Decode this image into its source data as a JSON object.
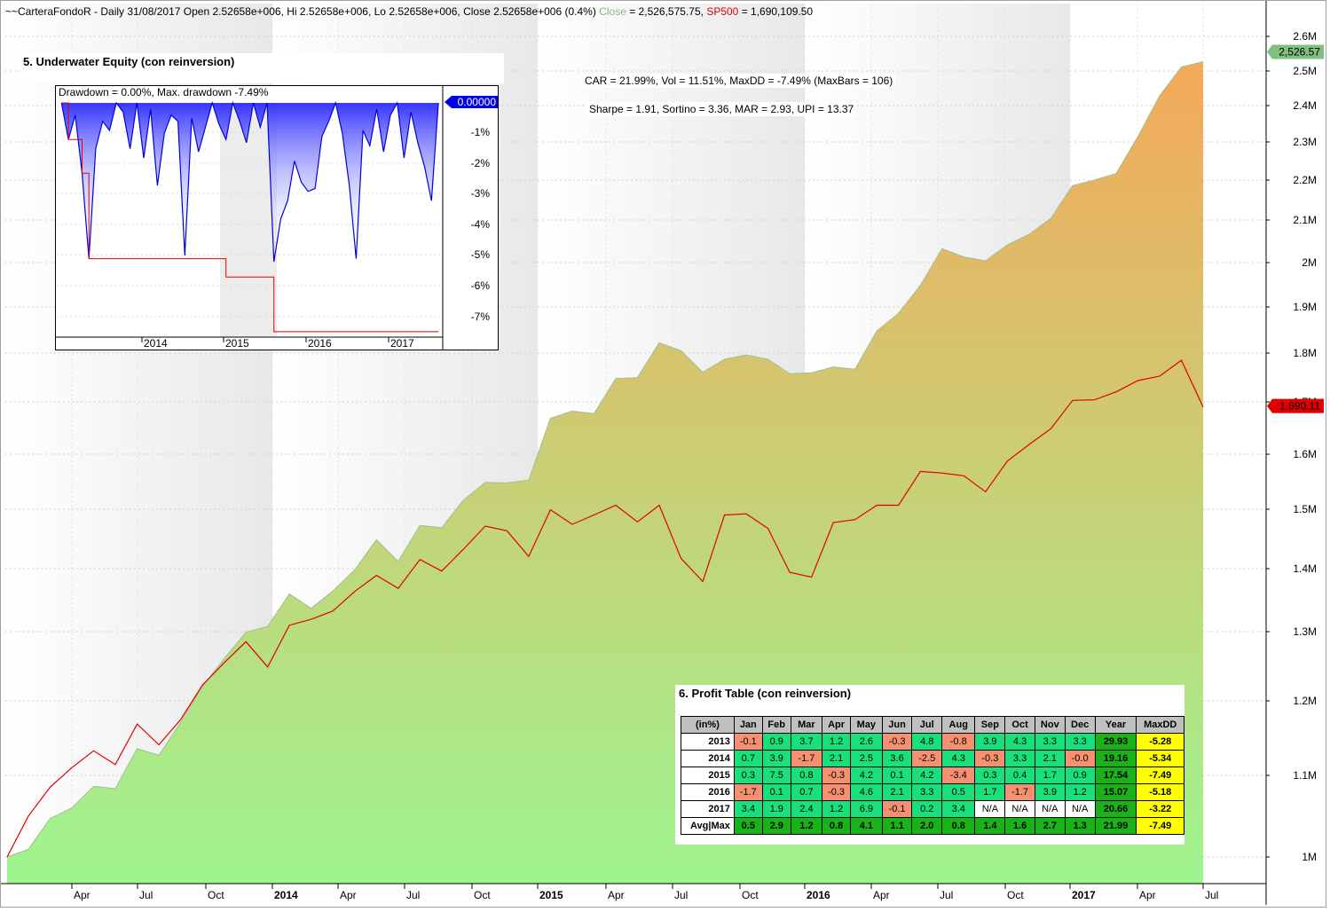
{
  "header": {
    "prefix": "~~CarteraFondoR - Daily 31/08/2017 Open 2.52658e+006, Hi 2.52658e+006, Lo 2.52658e+006, Close 2.52658e+006 (0.4%)",
    "close_label": "Close",
    "close_value": "= 2,526,575.75,",
    "sp_label": "SP500",
    "sp_value": "= 1,690,109.50"
  },
  "stats": {
    "line1": "CAR = 21.99%, Vol = 11.51%, MaxDD = -7.49% (MaxBars = 106)",
    "line2": "Sharpe = 1.91, Sortino = 3.36, MAR = 2.93, UPI = 13.37"
  },
  "colors": {
    "equity_top": "#f5a85a",
    "equity_bottom": "#9ef590",
    "sp500_line": "#e00000",
    "drawdown_line": "#0000e0",
    "maxdd_line": "#e00000",
    "price_tag_green": "#7fbf7f",
    "price_tag_red": "#e00000",
    "cell_green": "#19e07a",
    "cell_red": "#f59070",
    "cell_dark_green": "#19b319",
    "cell_yellow": "#ffff00"
  },
  "chart_data": [
    {
      "type": "area",
      "ylabel": "",
      "scale": "log",
      "ylim": [
        980000,
        2650000
      ],
      "x_ticks": [
        "Apr",
        "Jul",
        "Oct",
        "2014",
        "Apr",
        "Jul",
        "Oct",
        "2015",
        "Apr",
        "Jul",
        "Oct",
        "2016",
        "Apr",
        "Jul",
        "Oct",
        "2017",
        "Apr",
        "Jul"
      ],
      "y_ticks": [
        "2.6M",
        "2.5M",
        "2.4M",
        "2.3M",
        "2.2M",
        "2.1M",
        "2M",
        "1.9M",
        "1.8M",
        "1.7M",
        "1.6M",
        "1.5M",
        "1.4M",
        "1.3M",
        "1.2M",
        "1.1M",
        "1M"
      ],
      "last_close_tag": "2,526.57",
      "last_sp500_tag": "1,690.11",
      "x": [
        "2013-01",
        "2013-02",
        "2013-03",
        "2013-04",
        "2013-05",
        "2013-06",
        "2013-07",
        "2013-08",
        "2013-09",
        "2013-10",
        "2013-11",
        "2013-12",
        "2014-01",
        "2014-02",
        "2014-03",
        "2014-04",
        "2014-05",
        "2014-06",
        "2014-07",
        "2014-08",
        "2014-09",
        "2014-10",
        "2014-11",
        "2014-12",
        "2015-01",
        "2015-02",
        "2015-03",
        "2015-04",
        "2015-05",
        "2015-06",
        "2015-07",
        "2015-08",
        "2015-09",
        "2015-10",
        "2015-11",
        "2015-12",
        "2016-01",
        "2016-02",
        "2016-03",
        "2016-04",
        "2016-05",
        "2016-06",
        "2016-07",
        "2016-08",
        "2016-09",
        "2016-10",
        "2016-11",
        "2016-12",
        "2017-01",
        "2017-02",
        "2017-03",
        "2017-04",
        "2017-05",
        "2017-06",
        "2017-07",
        "2017-08"
      ],
      "series": [
        {
          "name": "Close",
          "values": [
            1000000,
            1009000,
            1046000,
            1059000,
            1086000,
            1083000,
            1135000,
            1126000,
            1170000,
            1220000,
            1260000,
            1299000,
            1308000,
            1359000,
            1336000,
            1364000,
            1398000,
            1448000,
            1412000,
            1472000,
            1468000,
            1516000,
            1548000,
            1547000,
            1552000,
            1668000,
            1682000,
            1677000,
            1747000,
            1749000,
            1822000,
            1805000,
            1760000,
            1787000,
            1796000,
            1787000,
            1757000,
            1759000,
            1771000,
            1766000,
            1847000,
            1886000,
            1948000,
            2032000,
            2013000,
            2004000,
            2041000,
            2066000,
            2104000,
            2186000,
            2200000,
            2217000,
            2314000,
            2428000,
            2511000,
            2526576
          ]
        },
        {
          "name": "SP500",
          "values": [
            1000000,
            1049000,
            1085000,
            1110000,
            1132000,
            1114000,
            1168000,
            1140000,
            1174000,
            1222000,
            1254000,
            1285000,
            1248000,
            1310000,
            1319000,
            1332000,
            1363000,
            1389000,
            1368000,
            1415000,
            1396000,
            1432000,
            1471000,
            1463000,
            1420000,
            1499000,
            1474000,
            1490000,
            1507000,
            1478000,
            1507000,
            1417000,
            1379000,
            1490000,
            1492000,
            1467000,
            1394000,
            1386000,
            1477000,
            1482000,
            1507000,
            1507000,
            1568000,
            1565000,
            1560000,
            1531000,
            1587000,
            1618000,
            1648000,
            1703000,
            1704000,
            1720000,
            1743000,
            1752000,
            1785000,
            1690110
          ]
        }
      ]
    },
    {
      "type": "area",
      "title": "5. Underwater Equity (con reinversion)",
      "legend_text": "Drawdown = 0.00%,   Max. drawdown -7.49%",
      "ylim": [
        -8,
        0
      ],
      "y_ticks": [
        "-1%",
        "-2%",
        "-3%",
        "-4%",
        "-5%",
        "-6%",
        "-7%"
      ],
      "x_ticks": [
        "2014",
        "2015",
        "2016",
        "2017"
      ],
      "current_tag": "0.00000",
      "x": [
        "2013-01",
        "2013-02",
        "2013-03",
        "2013-04",
        "2013-05",
        "2013-06",
        "2013-07",
        "2013-08",
        "2013-09",
        "2013-10",
        "2013-11",
        "2013-12",
        "2014-01",
        "2014-02",
        "2014-03",
        "2014-04",
        "2014-05",
        "2014-06",
        "2014-07",
        "2014-08",
        "2014-09",
        "2014-10",
        "2014-11",
        "2014-12",
        "2015-01",
        "2015-02",
        "2015-03",
        "2015-04",
        "2015-05",
        "2015-06",
        "2015-07",
        "2015-08",
        "2015-09",
        "2015-10",
        "2015-11",
        "2015-12",
        "2016-01",
        "2016-02",
        "2016-03",
        "2016-04",
        "2016-05",
        "2016-06",
        "2016-07",
        "2016-08",
        "2016-09",
        "2016-10",
        "2016-11",
        "2016-12",
        "2017-01",
        "2017-02",
        "2017-03",
        "2017-04",
        "2017-05",
        "2017-06",
        "2017-07",
        "2017-08"
      ],
      "series": [
        {
          "name": "Drawdown",
          "values": [
            0,
            -1.2,
            -0.4,
            -2.3,
            -5.1,
            -1.5,
            -0.6,
            -0.9,
            0,
            -0.3,
            -1.5,
            0,
            -1.8,
            -0.2,
            -2.7,
            -1.0,
            -0.4,
            -0.6,
            -5.0,
            -0.5,
            -1.6,
            -0.8,
            0,
            -0.7,
            -1.2,
            0,
            -0.6,
            -1.3,
            0,
            -0.8,
            0,
            -5.2,
            -3.8,
            -3.2,
            -1.9,
            -2.6,
            -2.9,
            -2.8,
            -1.1,
            -0.6,
            0,
            -1.0,
            -2.7,
            -5.1,
            -0.9,
            -1.4,
            -0.2,
            -1.6,
            -0.4,
            0,
            -1.8,
            -0.3,
            -1.3,
            -2.1,
            -3.2,
            0
          ]
        },
        {
          "name": "Max. drawdown",
          "values": [
            0,
            -1.2,
            -1.2,
            -2.3,
            -5.1,
            -5.1,
            -5.1,
            -5.1,
            -5.1,
            -5.1,
            -5.1,
            -5.1,
            -5.1,
            -5.1,
            -5.1,
            -5.1,
            -5.1,
            -5.1,
            -5.1,
            -5.1,
            -5.1,
            -5.1,
            -5.1,
            -5.1,
            -5.7,
            -5.7,
            -5.7,
            -5.7,
            -5.7,
            -5.7,
            -5.7,
            -7.49,
            -7.49,
            -7.49,
            -7.49,
            -7.49,
            -7.49,
            -7.49,
            -7.49,
            -7.49,
            -7.49,
            -7.49,
            -7.49,
            -7.49,
            -7.49,
            -7.49,
            -7.49,
            -7.49,
            -7.49,
            -7.49,
            -7.49,
            -7.49,
            -7.49,
            -7.49,
            -7.49,
            -7.49
          ]
        }
      ]
    },
    {
      "type": "table",
      "title": "6. Profit Table (con reinversion)",
      "columns": [
        "(in%)",
        "Jan",
        "Feb",
        "Mar",
        "Apr",
        "May",
        "Jun",
        "Jul",
        "Aug",
        "Sep",
        "Oct",
        "Nov",
        "Dec",
        "Year",
        "MaxDD"
      ],
      "rows": [
        [
          "2013",
          "-0.1",
          "0.9",
          "3.7",
          "1.2",
          "2.6",
          "-0.3",
          "4.8",
          "-0.8",
          "3.9",
          "4.3",
          "3.3",
          "3.3",
          "29.93",
          "-5.28"
        ],
        [
          "2014",
          "0.7",
          "3.9",
          "-1.7",
          "2.1",
          "2.5",
          "3.6",
          "-2.5",
          "4.3",
          "-0.3",
          "3.3",
          "2.1",
          "-0.0",
          "19.16",
          "-5.34"
        ],
        [
          "2015",
          "0.3",
          "7.5",
          "0.8",
          "-0.3",
          "4.2",
          "0.1",
          "4.2",
          "-3.4",
          "0.3",
          "0.4",
          "1.7",
          "0.9",
          "17.54",
          "-7.49"
        ],
        [
          "2016",
          "-1.7",
          "0.1",
          "0.7",
          "-0.3",
          "4.6",
          "2.1",
          "3.3",
          "0.5",
          "1.7",
          "-1.7",
          "3.9",
          "1.2",
          "15.07",
          "-5.18"
        ],
        [
          "2017",
          "3.4",
          "1.9",
          "2.4",
          "1.2",
          "6.9",
          "-0.1",
          "0.2",
          "3.4",
          "N/A",
          "N/A",
          "N/A",
          "N/A",
          "20.66",
          "-3.22"
        ],
        [
          "Avg|Max",
          "0.5",
          "2.9",
          "1.2",
          "0.8",
          "4.1",
          "1.1",
          "2.0",
          "0.8",
          "1.4",
          "1.6",
          "2.7",
          "1.3",
          "21.99",
          "-7.49"
        ]
      ]
    }
  ]
}
